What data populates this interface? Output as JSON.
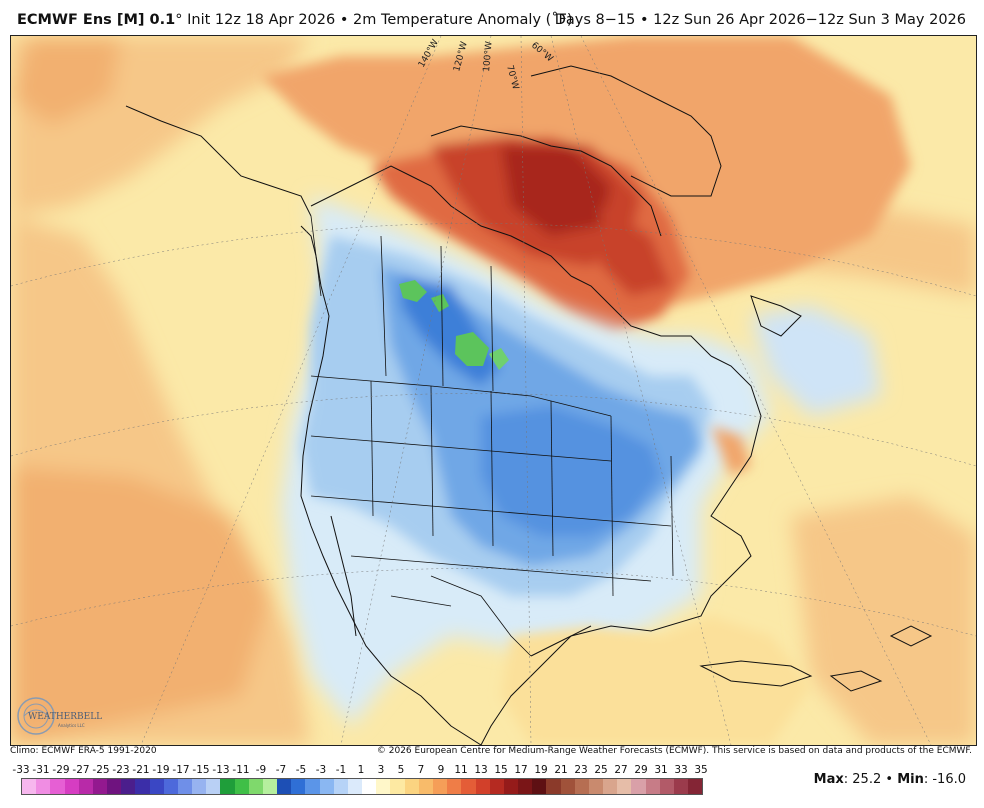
{
  "header": {
    "model": "ECMWF Ens [M] 0.1",
    "degree": "°",
    "init": "Init 12z 18 Apr 2026",
    "bullet": "•",
    "variable": "2m Temperature Anomaly (˚F)",
    "valid": "Days 8−15 • 12z Sun 26 Apr 2026−12z Sun 3 May 2026"
  },
  "map": {
    "longitude_labels": [
      "140°W",
      "120°W",
      "100°W",
      "70°W",
      "60°W"
    ],
    "colors": {
      "warm_light": "#fbe9a8",
      "warm_mid": "#f6c788",
      "warm_orange": "#f1a56a",
      "warm_red": "#e06a42",
      "warm_dark": "#b8321f",
      "cool_light": "#d8ebf8",
      "cool_mid": "#a7cdf0",
      "cool_blue": "#6fa7e6",
      "cool_dark": "#3d7fd8",
      "green": "#5cc45c"
    }
  },
  "logo": {
    "text": "WEATHERBELL",
    "sub": "Analytics LLC"
  },
  "credits": {
    "left": "Climo: ECMWF ERA-5 1991-2020",
    "right": "© 2026 European Centre for Medium-Range Weather Forecasts (ECMWF). This service is based on data and products of the ECMWF."
  },
  "legend": {
    "ticks": [
      "-33",
      "-31",
      "-29",
      "-27",
      "-25",
      "-23",
      "-21",
      "-19",
      "-17",
      "-15",
      "-13",
      "-11",
      "-9",
      "-7",
      "-5",
      "-3",
      "-1",
      "1",
      "3",
      "5",
      "7",
      "9",
      "11",
      "13",
      "15",
      "17",
      "19",
      "21",
      "23",
      "25",
      "27",
      "29",
      "31",
      "33",
      "35"
    ],
    "colors": [
      "#f7b7ee",
      "#f08de3",
      "#e65fd4",
      "#d63dc2",
      "#b82aa8",
      "#93198f",
      "#6f137f",
      "#4b1e8c",
      "#3b2ea8",
      "#3a47c4",
      "#4d69db",
      "#6f8fe8",
      "#97b3f0",
      "#b9d0f5",
      "#1f9e3a",
      "#3fbf47",
      "#7fd96c",
      "#b6ef9e",
      "#1d4fb5",
      "#2f6fd6",
      "#5b95e8",
      "#8ab7f2",
      "#b6d3f7",
      "#dbeafb",
      "#ffffff",
      "#fff7c9",
      "#fde9a2",
      "#fbd481",
      "#f8bb6a",
      "#f59e58",
      "#ef7d47",
      "#e45d37",
      "#d2402a",
      "#b52a21",
      "#951b1a",
      "#7a1517",
      "#5e1013",
      "#8b3a2a",
      "#a0523a",
      "#b66e52",
      "#c98a6e",
      "#d9a58d",
      "#e6bda8",
      "#d9a0a8",
      "#c77c87",
      "#b25a68",
      "#9b3b4c",
      "#842535"
    ]
  },
  "stats": {
    "max_label": "Max",
    "max_value": ": 25.2",
    "sep": "•",
    "min_label": "Min",
    "min_value": ": -16.0"
  }
}
